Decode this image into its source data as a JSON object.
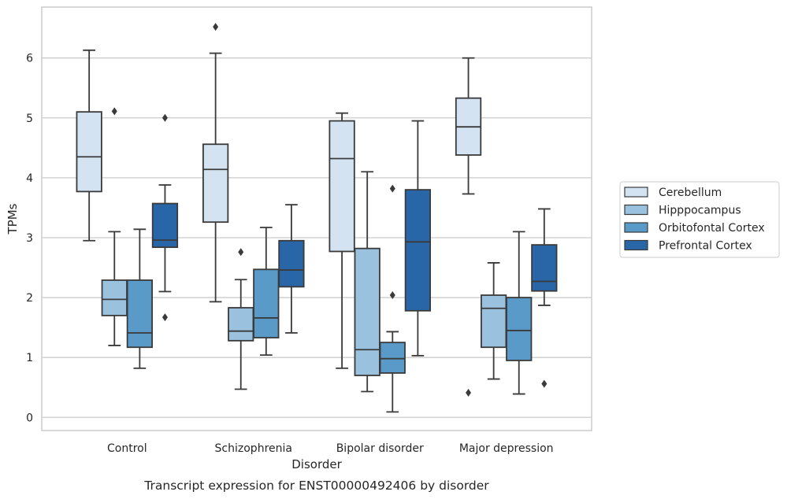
{
  "chart_data": {
    "type": "box",
    "caption": "Transcript expression for ENST00000492406 by disorder",
    "xlabel": "Disorder",
    "ylabel": "TPMs",
    "ylim": [
      -0.22,
      6.85
    ],
    "yticks": [
      0,
      1,
      2,
      3,
      4,
      5,
      6
    ],
    "grid": "horizontal",
    "legend_position": "right",
    "categories": [
      "Control",
      "Schizophrenia",
      "Bipolar disorder",
      "Major depression"
    ],
    "series": [
      {
        "name": "Cerebellum",
        "color": "#d4e3f2",
        "boxes": [
          {
            "whislo": 2.95,
            "q1": 3.77,
            "med": 4.35,
            "q3": 5.1,
            "whishi": 6.13,
            "fliers": []
          },
          {
            "whislo": 1.93,
            "q1": 3.26,
            "med": 4.14,
            "q3": 4.56,
            "whishi": 6.08,
            "fliers": [
              6.52
            ]
          },
          {
            "whislo": 0.82,
            "q1": 2.77,
            "med": 4.32,
            "q3": 4.95,
            "whishi": 5.08,
            "fliers": []
          },
          {
            "whislo": 3.73,
            "q1": 4.38,
            "med": 4.85,
            "q3": 5.33,
            "whishi": 6.0,
            "fliers": [
              0.41
            ]
          }
        ]
      },
      {
        "name": "Hipppocampus",
        "color": "#9ac1dd",
        "boxes": [
          {
            "whislo": 1.2,
            "q1": 1.7,
            "med": 1.97,
            "q3": 2.29,
            "whishi": 3.1,
            "fliers": [
              5.11
            ]
          },
          {
            "whislo": 0.47,
            "q1": 1.28,
            "med": 1.44,
            "q3": 1.83,
            "whishi": 2.3,
            "fliers": [
              2.76
            ]
          },
          {
            "whislo": 0.43,
            "q1": 0.7,
            "med": 1.13,
            "q3": 2.82,
            "whishi": 4.1,
            "fliers": []
          },
          {
            "whislo": 0.64,
            "q1": 1.17,
            "med": 1.82,
            "q3": 2.04,
            "whishi": 2.58,
            "fliers": []
          }
        ]
      },
      {
        "name": "Orbitofontal Cortex",
        "color": "#5a9ac8",
        "boxes": [
          {
            "whislo": 0.82,
            "q1": 1.17,
            "med": 1.41,
            "q3": 2.29,
            "whishi": 3.14,
            "fliers": []
          },
          {
            "whislo": 1.04,
            "q1": 1.33,
            "med": 1.66,
            "q3": 2.47,
            "whishi": 3.17,
            "fliers": []
          },
          {
            "whislo": 0.09,
            "q1": 0.74,
            "med": 0.98,
            "q3": 1.25,
            "whishi": 1.43,
            "fliers": [
              2.04,
              3.82
            ]
          },
          {
            "whislo": 0.39,
            "q1": 0.95,
            "med": 1.45,
            "q3": 2.0,
            "whishi": 3.1,
            "fliers": []
          }
        ]
      },
      {
        "name": "Prefrontal Cortex",
        "color": "#2966a8",
        "boxes": [
          {
            "whislo": 2.1,
            "q1": 2.84,
            "med": 2.96,
            "q3": 3.57,
            "whishi": 3.88,
            "fliers": [
              1.67,
              5.0
            ]
          },
          {
            "whislo": 1.41,
            "q1": 2.18,
            "med": 2.46,
            "q3": 2.95,
            "whishi": 3.55,
            "fliers": []
          },
          {
            "whislo": 1.03,
            "q1": 1.78,
            "med": 2.93,
            "q3": 3.8,
            "whishi": 4.95,
            "fliers": []
          },
          {
            "whislo": 1.87,
            "q1": 2.11,
            "med": 2.27,
            "q3": 2.88,
            "whishi": 3.48,
            "fliers": [
              0.56
            ]
          }
        ]
      }
    ]
  }
}
